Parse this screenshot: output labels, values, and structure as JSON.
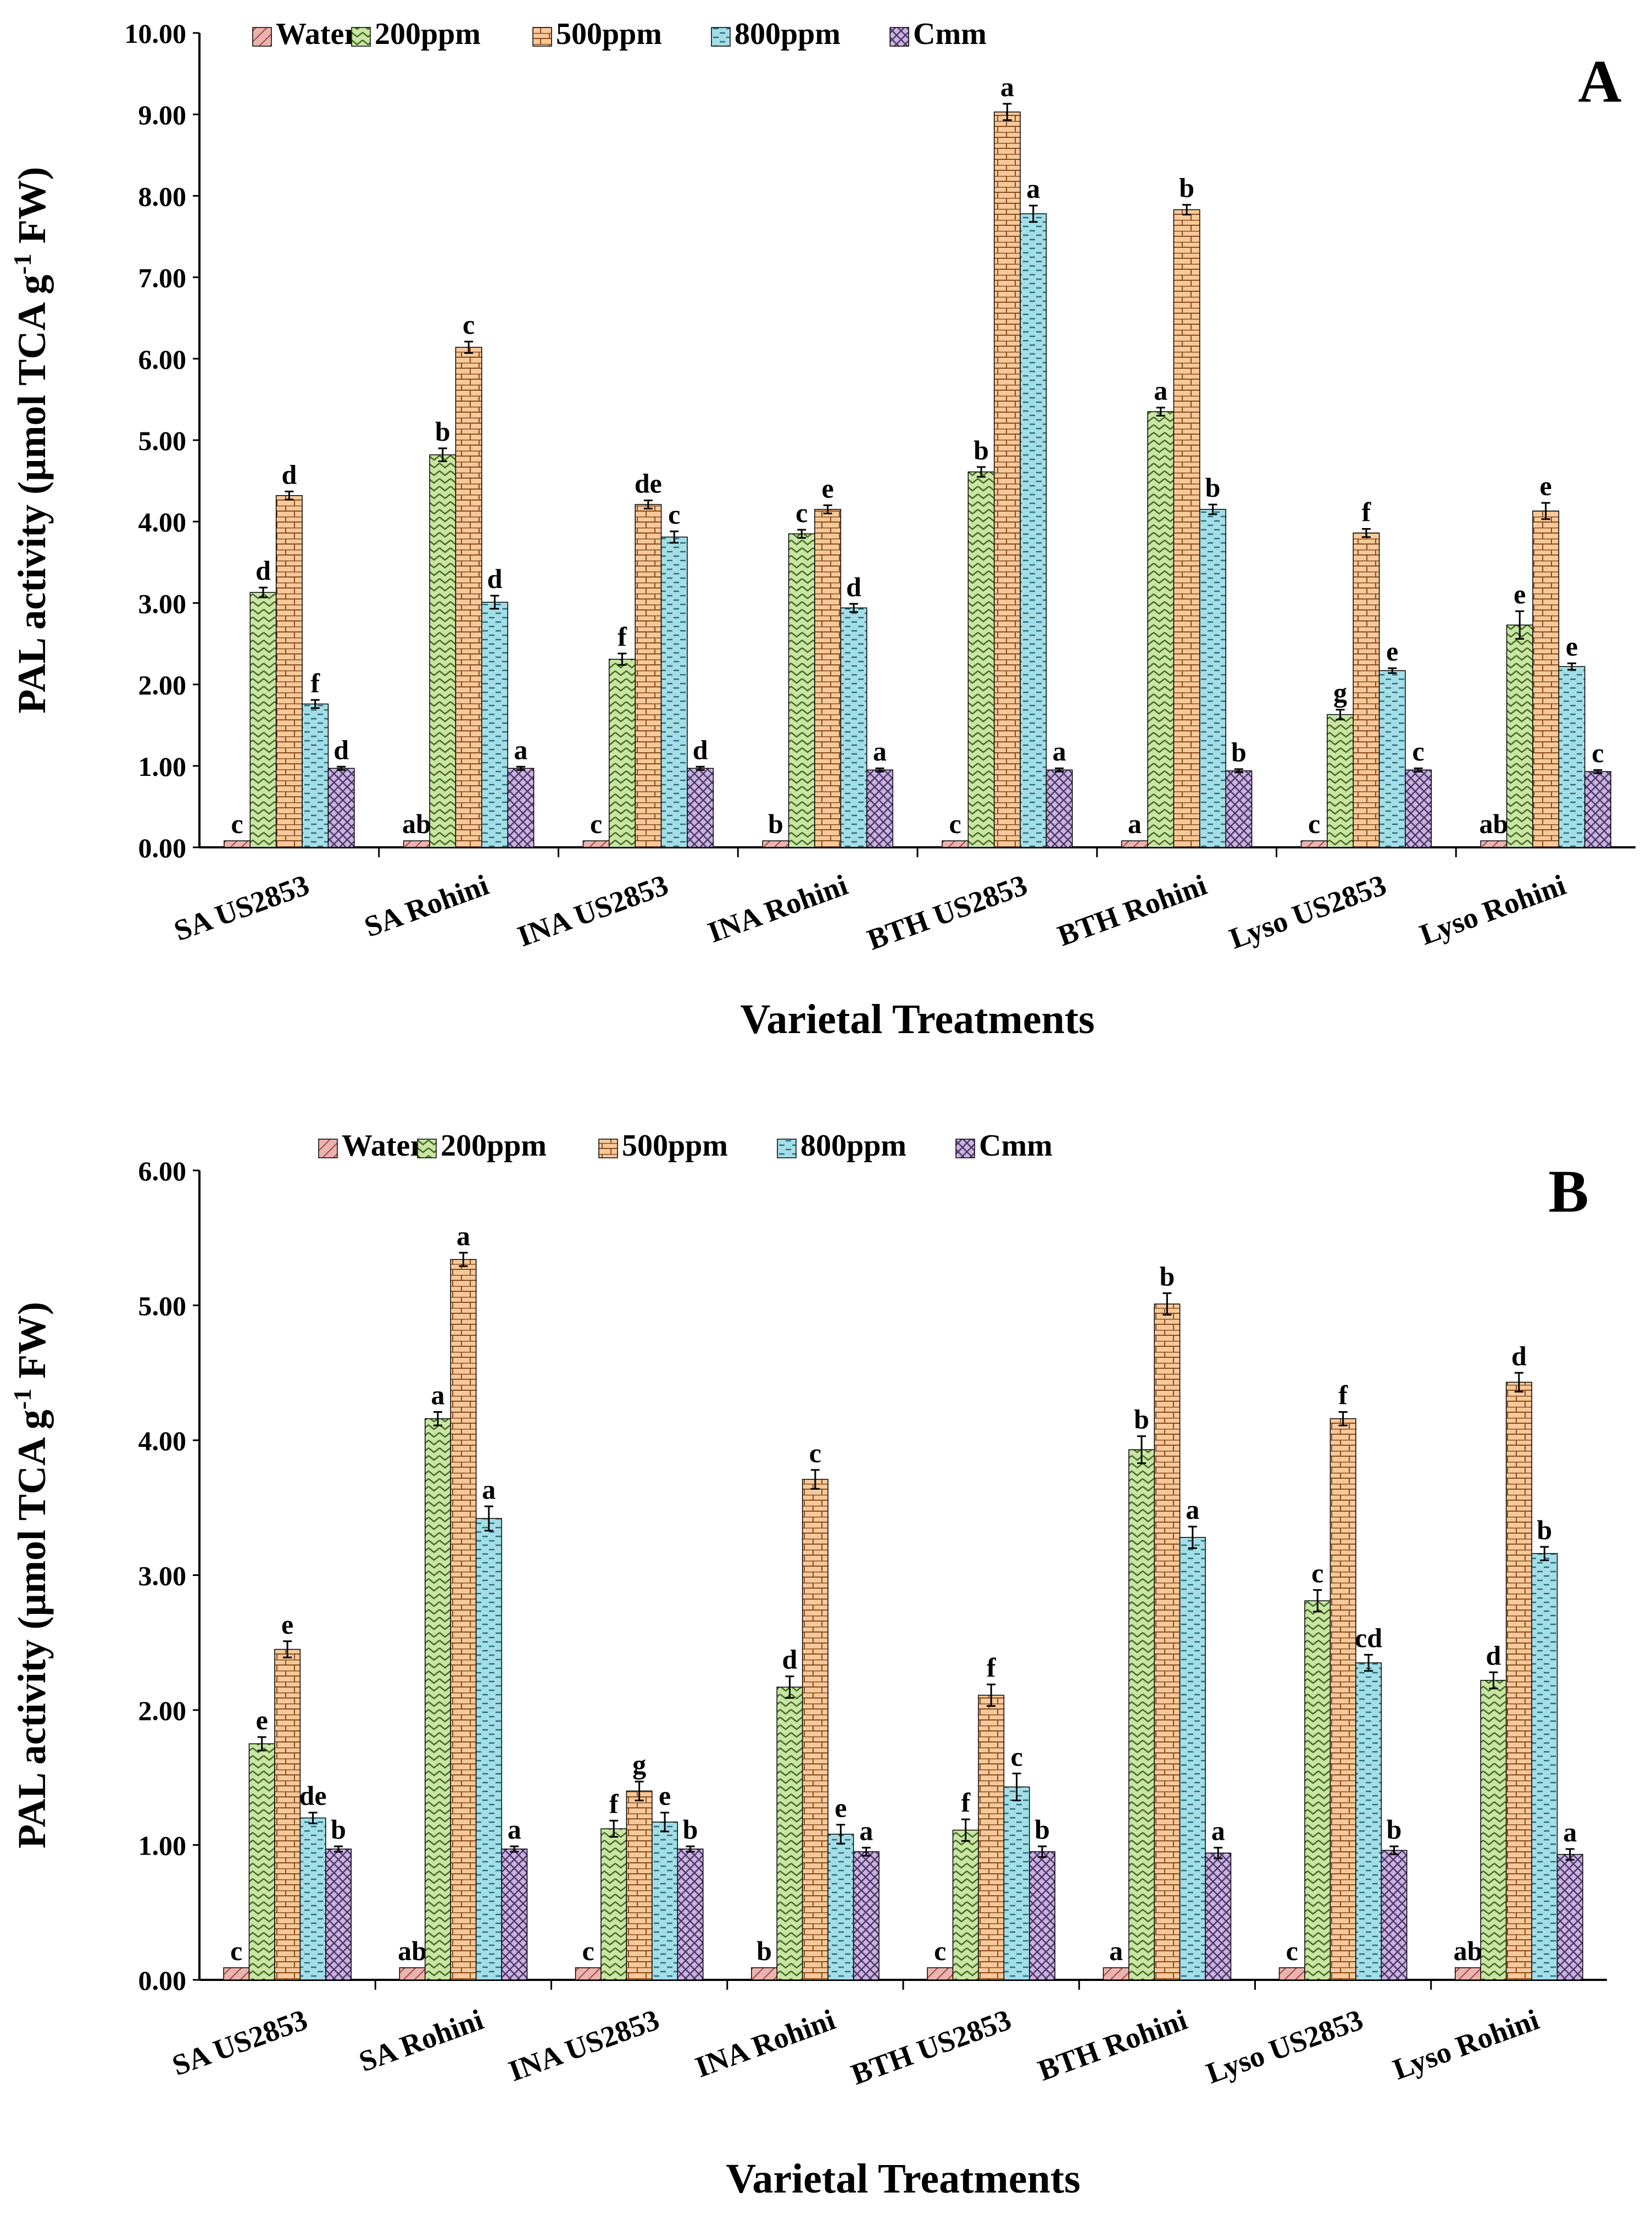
{
  "series_names": [
    "Water",
    "200ppm",
    "500ppm",
    "800ppm",
    "Cmm"
  ],
  "series_colors": [
    "#e8b4b0",
    "#c9e4a3",
    "#f7c99b",
    "#a5dde6",
    "#c9b4da"
  ],
  "chart_data": [
    {
      "type": "bar",
      "panel_label": "A",
      "ylabel_main": "PAL activity (µmol TCA g",
      "ylabel_sup": "-1",
      "ylabel_end": " FW)",
      "xlabel": "Varietal Treatments",
      "ylim": [
        0,
        10
      ],
      "yticks": [
        0,
        1,
        2,
        3,
        4,
        5,
        6,
        7,
        8,
        9,
        10
      ],
      "ytick_labels": [
        "0.00",
        "1.00",
        "2.00",
        "3.00",
        "4.00",
        "5.00",
        "6.00",
        "7.00",
        "8.00",
        "9.00",
        "10.00"
      ],
      "categories": [
        "SA US2853",
        "SA Rohini",
        "INA US2853",
        "INA Rohini",
        "BTH US2853",
        "BTH Rohini",
        "Lyso US2853",
        "Lyso Rohini"
      ],
      "series": [
        {
          "name": "Water",
          "values": [
            0.08,
            0.08,
            0.08,
            0.08,
            0.08,
            0.08,
            0.08,
            0.08
          ],
          "errors": [
            0,
            0,
            0,
            0,
            0,
            0,
            0,
            0
          ],
          "letters": [
            "c",
            "ab",
            "c",
            "b",
            "c",
            "a",
            "c",
            "ab"
          ]
        },
        {
          "name": "200ppm",
          "values": [
            3.13,
            4.82,
            2.31,
            3.85,
            4.61,
            5.35,
            1.63,
            2.73
          ],
          "errors": [
            0.06,
            0.08,
            0.07,
            0.05,
            0.06,
            0.05,
            0.06,
            0.17
          ],
          "letters": [
            "d",
            "b",
            "f",
            "c",
            "b",
            "a",
            "g",
            "e"
          ]
        },
        {
          "name": "500ppm",
          "values": [
            4.32,
            6.14,
            4.21,
            4.15,
            9.03,
            7.83,
            3.86,
            4.13
          ],
          "errors": [
            0.05,
            0.07,
            0.05,
            0.05,
            0.1,
            0.06,
            0.05,
            0.1
          ],
          "letters": [
            "d",
            "c",
            "de",
            "e",
            "a",
            "b",
            "f",
            "e"
          ]
        },
        {
          "name": "800ppm",
          "values": [
            1.76,
            3.01,
            3.81,
            2.94,
            7.78,
            4.15,
            2.17,
            2.22
          ],
          "errors": [
            0.05,
            0.08,
            0.07,
            0.05,
            0.1,
            0.06,
            0.03,
            0.04
          ],
          "letters": [
            "f",
            "d",
            "c",
            "d",
            "a",
            "b",
            "e",
            "e"
          ]
        },
        {
          "name": "Cmm",
          "values": [
            0.97,
            0.97,
            0.97,
            0.95,
            0.95,
            0.94,
            0.95,
            0.93
          ],
          "errors": [
            0.02,
            0.02,
            0.02,
            0.02,
            0.02,
            0.02,
            0.02,
            0.02
          ],
          "letters": [
            "d",
            "a",
            "d",
            "a",
            "a",
            "b",
            "c",
            "c"
          ]
        }
      ]
    },
    {
      "type": "bar",
      "panel_label": "B",
      "ylabel_main": "PAL activity (µmol TCA g",
      "ylabel_sup": "-1",
      "ylabel_end": " FW)",
      "xlabel": "Varietal Treatments",
      "ylim": [
        0,
        6
      ],
      "yticks": [
        0,
        1,
        2,
        3,
        4,
        5,
        6
      ],
      "ytick_labels": [
        "0.00",
        "1.00",
        "2.00",
        "3.00",
        "4.00",
        "5.00",
        "6.00"
      ],
      "categories": [
        "SA US2853",
        "SA Rohini",
        "INA US2853",
        "INA Rohini",
        "BTH US2853",
        "BTH Rohini",
        "Lyso US2853",
        "Lyso Rohini"
      ],
      "series": [
        {
          "name": "Water",
          "values": [
            0.09,
            0.09,
            0.09,
            0.09,
            0.09,
            0.09,
            0.09,
            0.09
          ],
          "errors": [
            0,
            0,
            0,
            0,
            0,
            0,
            0,
            0
          ],
          "letters": [
            "c",
            "ab",
            "c",
            "b",
            "c",
            "a",
            "c",
            "ab"
          ]
        },
        {
          "name": "200ppm",
          "values": [
            1.75,
            4.16,
            1.12,
            2.17,
            1.11,
            3.93,
            2.81,
            2.22
          ],
          "errors": [
            0.05,
            0.05,
            0.06,
            0.08,
            0.08,
            0.1,
            0.08,
            0.06
          ],
          "letters": [
            "e",
            "a",
            "f",
            "d",
            "f",
            "b",
            "c",
            "d"
          ]
        },
        {
          "name": "500ppm",
          "values": [
            2.45,
            5.34,
            1.4,
            3.71,
            2.11,
            5.01,
            4.16,
            4.43
          ],
          "errors": [
            0.06,
            0.05,
            0.07,
            0.07,
            0.08,
            0.08,
            0.05,
            0.07
          ],
          "letters": [
            "e",
            "a",
            "g",
            "c",
            "f",
            "b",
            "f",
            "d"
          ]
        },
        {
          "name": "800ppm",
          "values": [
            1.2,
            3.42,
            1.17,
            1.08,
            1.43,
            3.28,
            2.35,
            3.16
          ],
          "errors": [
            0.04,
            0.09,
            0.07,
            0.07,
            0.1,
            0.08,
            0.06,
            0.05
          ],
          "letters": [
            "de",
            "a",
            "e",
            "e",
            "c",
            "a",
            "cd",
            "b"
          ]
        },
        {
          "name": "Cmm",
          "values": [
            0.97,
            0.97,
            0.97,
            0.95,
            0.95,
            0.94,
            0.96,
            0.93
          ],
          "errors": [
            0.02,
            0.02,
            0.02,
            0.03,
            0.04,
            0.04,
            0.03,
            0.04
          ],
          "letters": [
            "b",
            "a",
            "b",
            "a",
            "b",
            "a",
            "b",
            "a"
          ]
        }
      ]
    }
  ]
}
